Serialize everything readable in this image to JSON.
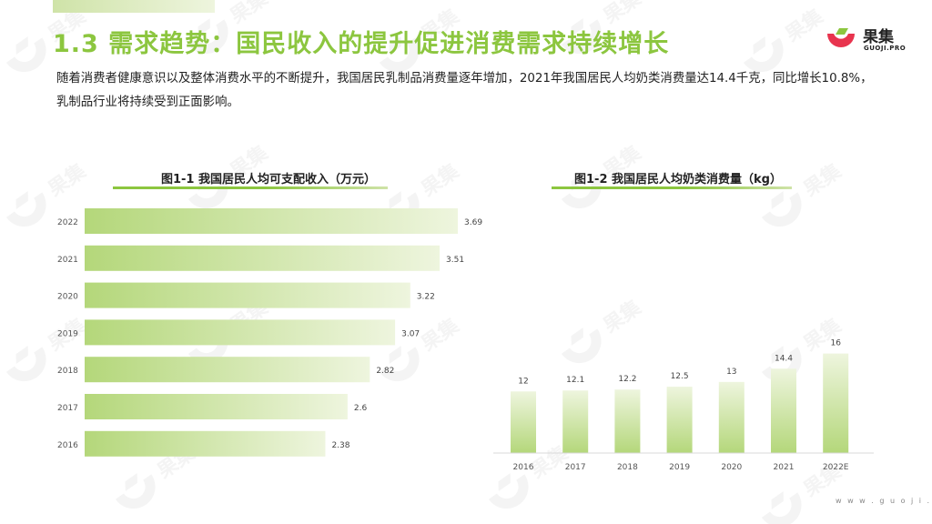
{
  "page": {
    "title": "1.3 需求趋势：国民收入的提升促进消费需求持续增长",
    "intro": "随着消费者健康意识以及整体消费水平的不断提升，我国居民乳制品消费量逐年增加，2021年我国居民人均奶类消费量达14.4千克，同比增长10.8%，乳制品行业将持续受到正面影响。",
    "footer_url": "w w w . g u o j i . p r o"
  },
  "logo": {
    "name": "果集",
    "sub": "GUOJI.PRO",
    "icon": "guoji-logo-icon",
    "colors": [
      "#e8344e",
      "#8cc63f"
    ]
  },
  "watermark": {
    "name": "果集",
    "sub": "GUOJI.PRO",
    "icon": "guoji-watermark-icon"
  },
  "theme": {
    "accent": "#8cc63f",
    "bar_dark": "#b4d77a",
    "bar_light": "#eef5de"
  },
  "chart_data": [
    {
      "type": "bar",
      "orientation": "horizontal",
      "title": "图1-1 我国居民人均可支配收入（万元）",
      "categories": [
        "2022",
        "2021",
        "2020",
        "2019",
        "2018",
        "2017",
        "2016"
      ],
      "values": [
        3.69,
        3.51,
        3.22,
        3.07,
        2.82,
        2.6,
        2.38
      ],
      "data_labels": [
        "3.69",
        "3.51",
        "3.22",
        "3.07",
        "2.82",
        "2.6",
        "2.38"
      ],
      "xlim": [
        0,
        3.69
      ],
      "grid": false,
      "legend": "none"
    },
    {
      "type": "bar",
      "orientation": "vertical",
      "title": "图1-2 我国居民人均奶类消费量（kg）",
      "categories": [
        "2016",
        "2017",
        "2018",
        "2019",
        "2020",
        "2021",
        "2022E"
      ],
      "values": [
        12,
        12.1,
        12.2,
        12.5,
        13,
        14.4,
        16
      ],
      "data_labels": [
        "12",
        "12.1",
        "12.2",
        "12.5",
        "13",
        "14.4",
        "16"
      ],
      "grid": false,
      "legend": "none"
    }
  ]
}
